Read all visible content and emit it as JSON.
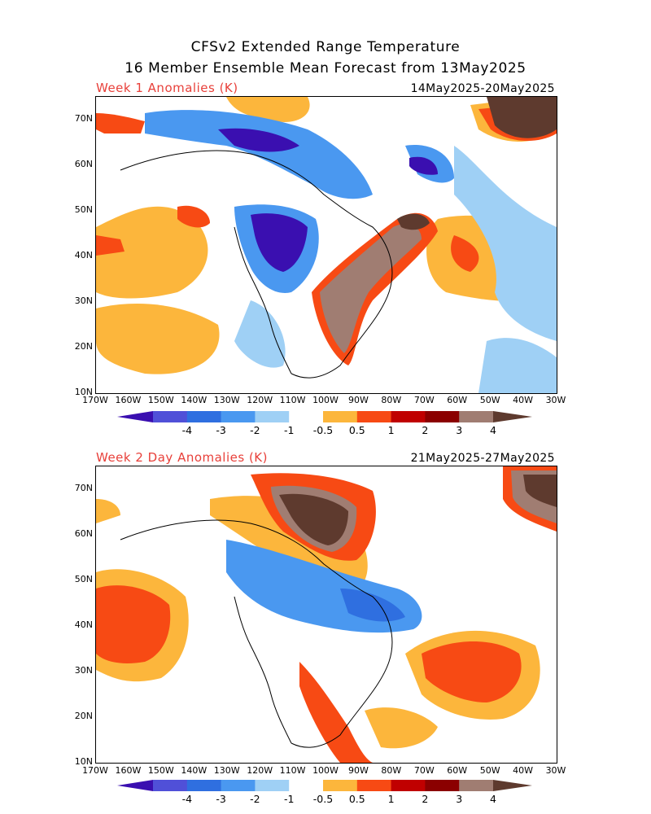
{
  "title_line1": "CFSv2 Extended Range Temperature",
  "title_line2": "16 Member Ensemble Mean Forecast from 13May2025",
  "panels": [
    {
      "label": "Week 1 Anomalies (K)",
      "dates": "14May2025-20May2025"
    },
    {
      "label": "Week 2 Day Anomalies (K)",
      "dates": "21May2025-27May2025"
    }
  ],
  "lat_labels": [
    "70N",
    "60N",
    "50N",
    "40N",
    "30N",
    "20N",
    "10N"
  ],
  "lon_labels": [
    "170W",
    "160W",
    "150W",
    "140W",
    "130W",
    "120W",
    "110W",
    "100W",
    "90W",
    "80W",
    "70W",
    "60W",
    "50W",
    "40W",
    "30W"
  ],
  "colorbar": {
    "labels": [
      "-4",
      "-3",
      "-2",
      "-1",
      "-0.5",
      "0.5",
      "1",
      "2",
      "3",
      "4"
    ],
    "colors": [
      "#3a0fb0",
      "#5050d8",
      "#2f6fe0",
      "#4a98f0",
      "#9fd0f5",
      "#ffffff",
      "#fcb63c",
      "#f74a14",
      "#c00000",
      "#8b0000",
      "#a07d72",
      "#5e3a2e"
    ]
  }
}
